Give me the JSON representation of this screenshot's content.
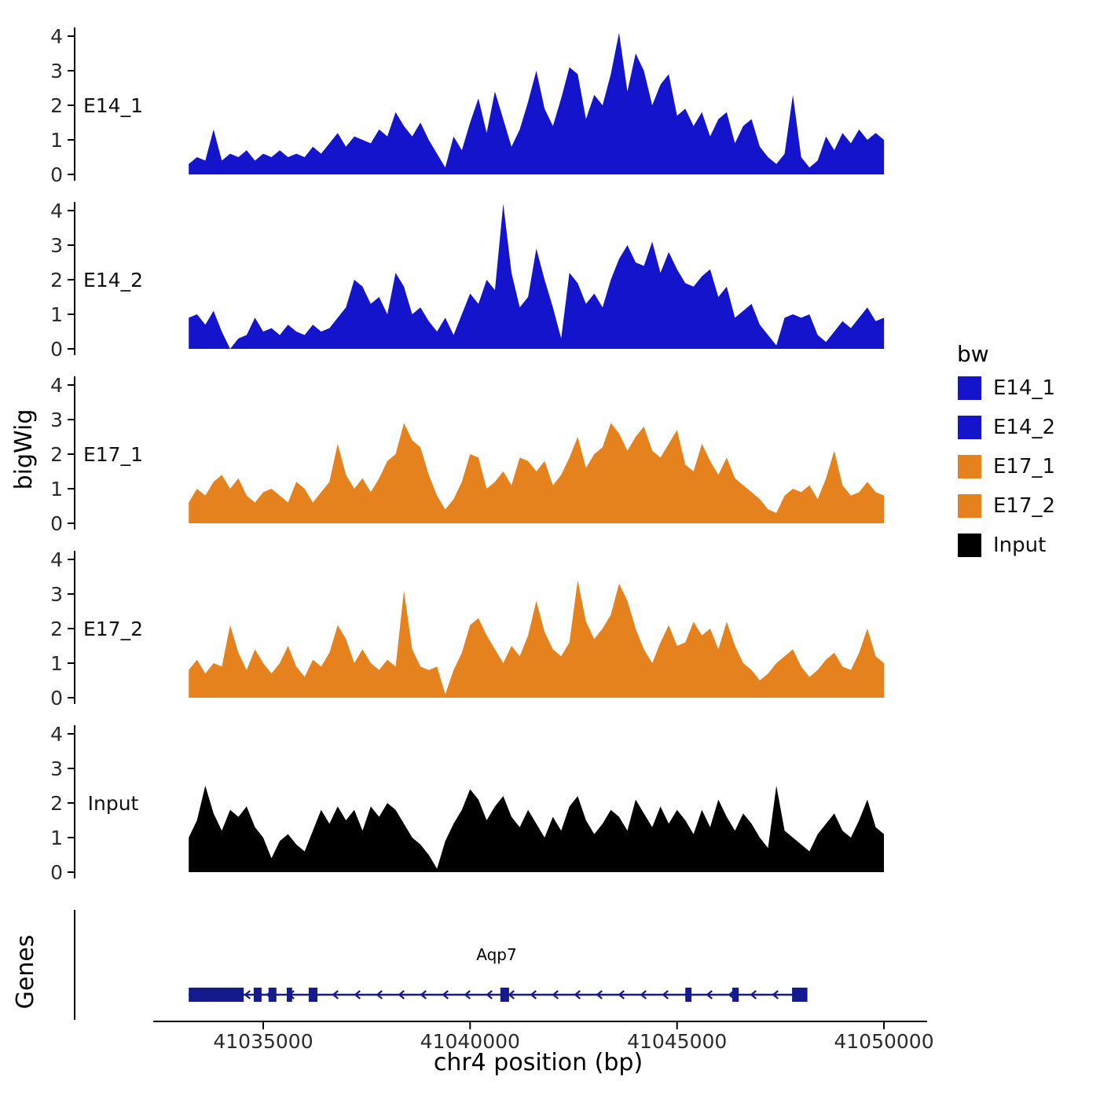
{
  "chart_data": {
    "type": "area",
    "xlabel": "chr4 position (bp)",
    "ylabel": "bigWig",
    "genes_label": "Genes",
    "x_start": 41033200,
    "x_step": 200,
    "xlim": [
      41032300,
      41051000
    ],
    "ylim": [
      0,
      4.3
    ],
    "x_ticks": [
      41035000,
      41040000,
      41045000,
      41050000
    ],
    "y_ticks": [
      0,
      1,
      2,
      3,
      4
    ],
    "grid": false,
    "legend_position": "right",
    "series": [
      {
        "name": "E14_1",
        "color": "#1414CC",
        "values": [
          0.3,
          0.5,
          0.4,
          1.3,
          0.4,
          0.6,
          0.5,
          0.7,
          0.4,
          0.6,
          0.5,
          0.7,
          0.5,
          0.6,
          0.5,
          0.8,
          0.6,
          0.9,
          1.2,
          0.8,
          1.1,
          1.0,
          0.9,
          1.3,
          1.1,
          1.8,
          1.4,
          1.1,
          1.5,
          1.0,
          0.6,
          0.2,
          1.1,
          0.7,
          1.5,
          2.2,
          1.2,
          2.4,
          1.6,
          0.8,
          1.3,
          2.1,
          3.0,
          1.9,
          1.4,
          2.2,
          3.1,
          2.9,
          1.6,
          2.3,
          2.0,
          2.9,
          4.1,
          2.4,
          3.5,
          3.0,
          2.0,
          2.6,
          2.9,
          1.7,
          1.9,
          1.4,
          1.8,
          1.1,
          1.6,
          1.8,
          0.9,
          1.4,
          1.6,
          0.8,
          0.5,
          0.3,
          0.6,
          2.3,
          0.5,
          0.2,
          0.4,
          1.1,
          0.7,
          1.2,
          0.9,
          1.3,
          1.0,
          1.2,
          1.0
        ]
      },
      {
        "name": "E14_2",
        "color": "#1414CC",
        "values": [
          0.9,
          1.0,
          0.7,
          1.1,
          0.5,
          0.0,
          0.3,
          0.4,
          0.9,
          0.5,
          0.6,
          0.4,
          0.7,
          0.5,
          0.4,
          0.7,
          0.5,
          0.6,
          0.9,
          1.2,
          2.0,
          1.8,
          1.3,
          1.5,
          1.0,
          2.2,
          1.8,
          1.0,
          1.2,
          0.8,
          0.5,
          0.9,
          0.4,
          1.0,
          1.6,
          1.3,
          2.0,
          1.7,
          4.2,
          2.2,
          1.2,
          1.5,
          2.9,
          2.0,
          1.2,
          0.3,
          2.2,
          1.9,
          1.3,
          1.6,
          1.2,
          2.0,
          2.6,
          3.0,
          2.5,
          2.4,
          3.1,
          2.2,
          2.8,
          2.3,
          1.9,
          1.8,
          2.1,
          2.3,
          1.5,
          1.8,
          0.9,
          1.1,
          1.3,
          0.7,
          0.4,
          0.1,
          0.9,
          1.0,
          0.9,
          1.0,
          0.4,
          0.2,
          0.5,
          0.8,
          0.6,
          0.9,
          1.2,
          0.8,
          0.9
        ]
      },
      {
        "name": "E17_1",
        "color": "#E6821E",
        "values": [
          0.6,
          1.0,
          0.8,
          1.2,
          1.4,
          1.0,
          1.3,
          0.8,
          0.6,
          0.9,
          1.0,
          0.8,
          0.6,
          1.2,
          1.0,
          0.6,
          0.9,
          1.2,
          2.3,
          1.4,
          1.0,
          1.3,
          0.9,
          1.3,
          1.8,
          2.0,
          2.9,
          2.4,
          2.2,
          1.4,
          0.8,
          0.4,
          0.7,
          1.2,
          2.0,
          1.9,
          1.0,
          1.2,
          1.5,
          1.1,
          1.9,
          1.8,
          1.5,
          1.8,
          1.1,
          1.4,
          1.9,
          2.5,
          1.6,
          2.0,
          2.2,
          2.9,
          2.6,
          2.1,
          2.5,
          2.8,
          2.1,
          1.9,
          2.3,
          2.7,
          1.7,
          1.5,
          2.3,
          1.8,
          1.4,
          1.9,
          1.3,
          1.1,
          0.9,
          0.7,
          0.4,
          0.3,
          0.8,
          1.0,
          0.9,
          1.1,
          0.7,
          1.3,
          2.1,
          1.1,
          0.8,
          0.9,
          1.2,
          0.9,
          0.8
        ]
      },
      {
        "name": "E17_2",
        "color": "#E6821E",
        "values": [
          0.8,
          1.1,
          0.7,
          1.0,
          0.9,
          2.1,
          1.3,
          0.8,
          1.4,
          1.0,
          0.7,
          1.0,
          1.5,
          0.9,
          0.6,
          1.1,
          0.9,
          1.3,
          2.1,
          1.7,
          1.0,
          1.4,
          1.0,
          0.8,
          1.1,
          0.9,
          3.1,
          1.4,
          0.9,
          0.8,
          0.9,
          0.1,
          0.8,
          1.3,
          2.1,
          2.3,
          1.8,
          1.4,
          1.0,
          1.5,
          1.2,
          1.8,
          2.8,
          1.9,
          1.4,
          1.2,
          1.6,
          3.4,
          2.2,
          1.7,
          2.0,
          2.4,
          3.3,
          2.8,
          2.0,
          1.4,
          1.0,
          1.6,
          2.1,
          1.5,
          1.6,
          2.2,
          1.8,
          2.0,
          1.4,
          2.2,
          1.5,
          1.0,
          0.8,
          0.5,
          0.7,
          1.0,
          1.2,
          1.4,
          0.9,
          0.6,
          0.8,
          1.1,
          1.3,
          0.9,
          0.8,
          1.3,
          2.0,
          1.2,
          1.0
        ]
      },
      {
        "name": "Input",
        "color": "#000000",
        "values": [
          1.0,
          1.5,
          2.5,
          1.7,
          1.2,
          1.8,
          1.6,
          1.9,
          1.3,
          1.0,
          0.4,
          0.9,
          1.1,
          0.8,
          0.6,
          1.2,
          1.8,
          1.4,
          1.9,
          1.5,
          1.8,
          1.2,
          1.9,
          1.6,
          2.0,
          1.8,
          1.4,
          1.0,
          0.8,
          0.5,
          0.1,
          0.9,
          1.4,
          1.8,
          2.4,
          2.1,
          1.5,
          1.9,
          2.2,
          1.6,
          1.3,
          1.8,
          1.4,
          1.0,
          1.6,
          1.2,
          1.9,
          2.2,
          1.5,
          1.1,
          1.4,
          1.8,
          1.6,
          1.2,
          2.1,
          1.7,
          1.3,
          1.9,
          1.4,
          1.8,
          1.5,
          1.1,
          1.8,
          1.3,
          2.1,
          1.6,
          1.2,
          1.7,
          1.4,
          1.0,
          0.7,
          2.5,
          1.2,
          1.0,
          0.8,
          0.6,
          1.1,
          1.4,
          1.7,
          1.2,
          1.0,
          1.5,
          2.1,
          1.3,
          1.1
        ]
      }
    ],
    "gene": {
      "name": "Aqp7",
      "strand": "-",
      "start": 41033200,
      "end": 41048150,
      "color": "#151B8D",
      "exons": [
        [
          41033200,
          41034530
        ],
        [
          41034770,
          41034960
        ],
        [
          41035130,
          41035320
        ],
        [
          41035570,
          41035700
        ],
        [
          41036100,
          41036310
        ],
        [
          41040730,
          41040940
        ],
        [
          41045200,
          41045350
        ],
        [
          41046335,
          41046490
        ],
        [
          41047780,
          41048150
        ]
      ]
    }
  },
  "legend": {
    "title": "bw",
    "entries": [
      {
        "label": "E14_1",
        "color": "#1414CC"
      },
      {
        "label": "E14_2",
        "color": "#1414CC"
      },
      {
        "label": "E17_1",
        "color": "#E6821E"
      },
      {
        "label": "E17_2",
        "color": "#E6821E"
      },
      {
        "label": "Input",
        "color": "#000000"
      }
    ]
  }
}
